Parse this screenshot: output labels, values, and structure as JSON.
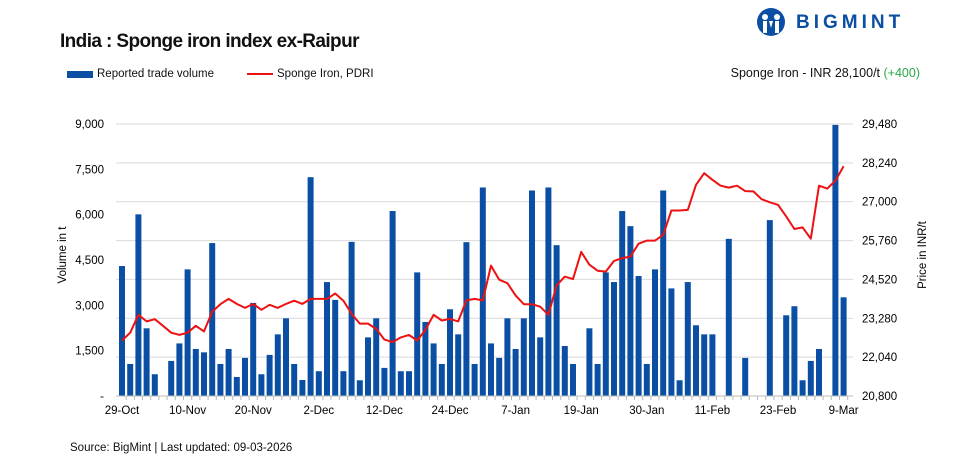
{
  "header": {
    "title": "India : Sponge iron index ex-Raipur",
    "brand": "BIGMINT",
    "price_text": "Sponge Iron - INR 28,100/t",
    "price_change": "(+400)",
    "price_change_color": "#2aa84a"
  },
  "footer": {
    "source": "Source: BigMint | Last updated: 09-03-2026"
  },
  "chart_data": {
    "type": "bar+line",
    "legend_position": "top-left",
    "grid": true,
    "ylabel_left": "Volume in t",
    "ylabel_right": "Price in INR/t",
    "ylim_left": [
      0,
      9000
    ],
    "ylim_right": [
      20800,
      29480
    ],
    "yticks_left": [
      "-",
      "1,500",
      "3,000",
      "4,500",
      "6,000",
      "7,500",
      "9,000"
    ],
    "yticks_right": [
      "20,800",
      "22,040",
      "23,280",
      "24,520",
      "25,760",
      "27,000",
      "28,240",
      "29,480"
    ],
    "xtick_labels": [
      "29-Oct",
      "10-Nov",
      "20-Nov",
      "2-Dec",
      "12-Dec",
      "24-Dec",
      "7-Jan",
      "19-Jan",
      "30-Jan",
      "11-Feb",
      "23-Feb",
      "9-Mar"
    ],
    "series": [
      {
        "name": "Reported trade volume",
        "type": "bar",
        "axis": "left",
        "color": "#0a4fa3",
        "values": [
          4300,
          1060,
          6010,
          2240,
          720,
          0,
          1160,
          1740,
          4190,
          1555,
          1445,
          5060,
          1060,
          1555,
          630,
          1260,
          3080,
          720,
          1360,
          2040,
          2570,
          1060,
          530,
          7240,
          820,
          3770,
          3180,
          820,
          5100,
          520,
          1940,
          2570,
          930,
          6120,
          820,
          820,
          4090,
          2450,
          1740,
          1060,
          2870,
          2040,
          5090,
          1060,
          6900,
          1740,
          1260,
          2570,
          1555,
          2570,
          6800,
          1940,
          6900,
          4990,
          1655,
          1060,
          0,
          2240,
          1060,
          4090,
          3770,
          6120,
          5620,
          3970,
          1060,
          4190,
          6800,
          3560,
          520,
          3770,
          2340,
          2040,
          2040,
          0,
          5200,
          0,
          1260,
          0,
          0,
          5820,
          0,
          2670,
          2970,
          520,
          1160,
          1555,
          0,
          8970,
          3265
        ]
      },
      {
        "name": "Sponge Iron, PDRI",
        "type": "line",
        "axis": "right",
        "color": "#ee1111",
        "values": [
          22570,
          22820,
          23390,
          23180,
          23250,
          23040,
          22820,
          22750,
          22820,
          23040,
          22860,
          23490,
          23730,
          23900,
          23740,
          23610,
          23740,
          23550,
          23710,
          23610,
          23740,
          23840,
          23740,
          23900,
          23900,
          23900,
          24070,
          23840,
          23420,
          23110,
          23110,
          22940,
          22600,
          22520,
          22670,
          22750,
          22570,
          22910,
          23390,
          23210,
          23260,
          23180,
          23850,
          23900,
          23850,
          24960,
          24510,
          24400,
          24010,
          23730,
          23730,
          23650,
          23390,
          24330,
          24610,
          24530,
          25400,
          24990,
          24800,
          24770,
          25110,
          25200,
          25250,
          25660,
          25760,
          25760,
          25940,
          26720,
          26720,
          26740,
          27540,
          27910,
          27700,
          27510,
          27450,
          27510,
          27340,
          27330,
          27080,
          26980,
          26900,
          26530,
          26130,
          26180,
          25820,
          27510,
          27420,
          27670,
          28130
        ]
      }
    ]
  }
}
